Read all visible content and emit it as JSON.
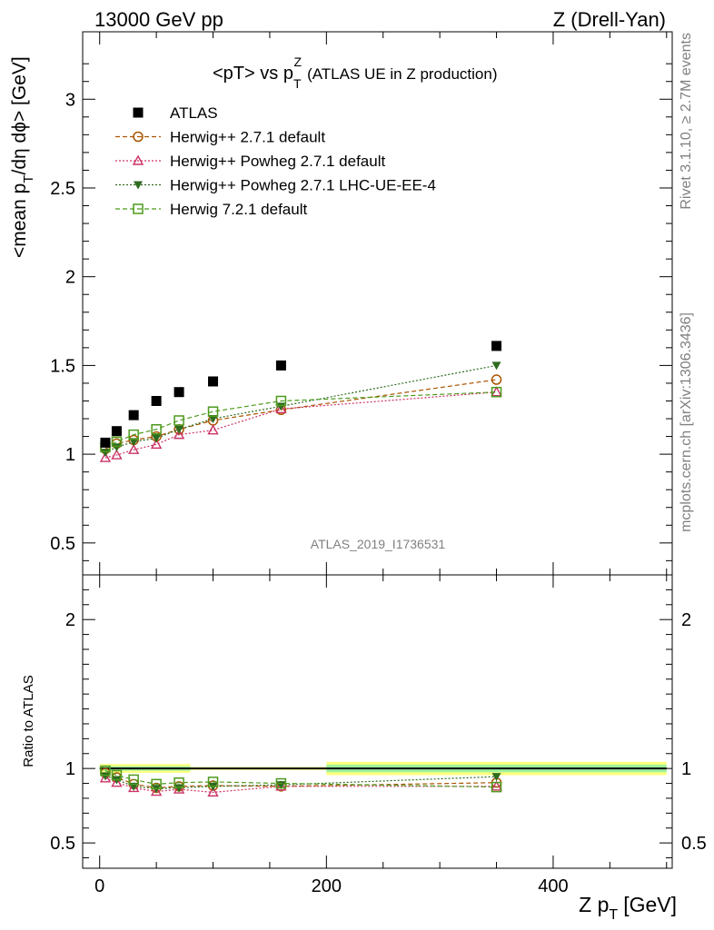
{
  "header": {
    "left": "13000 GeV pp",
    "right": "Z (Drell-Yan)"
  },
  "side_labels": {
    "rivet": "Rivet 3.1.10, ≥ 2.7M events",
    "mcplots": "mcplots.cern.ch [arXiv:1306.3436]"
  },
  "watermark": "ATLAS_2019_I1736531",
  "chart_data": [
    {
      "type": "scatter",
      "title": "<pT> vs p_T^Z (ATLAS UE in Z production)",
      "title_main": "<pT> vs p",
      "title_sub": "T",
      "title_sup": "Z",
      "title_rest": "(ATLAS UE in Z production)",
      "ylabel": "<mean p_T/dη dϕ> [GeV]",
      "ylabel_parts": [
        "<mean p",
        "T",
        "/dη dϕ> [GeV]"
      ],
      "xlim": [
        -15,
        505
      ],
      "ylim": [
        0.32,
        3.38
      ],
      "yticks": [
        0.5,
        1,
        1.5,
        2,
        2.5,
        3
      ],
      "ytick_labels": [
        "0.5",
        "1",
        "1.5",
        "2",
        "2.5",
        "3"
      ],
      "legend_position": "top-left",
      "series": [
        {
          "name": "ATLAS",
          "color": "#000000",
          "marker": "filled-square",
          "line": "none",
          "x": [
            5,
            15,
            30,
            50,
            70,
            100,
            160,
            350
          ],
          "y": [
            1.065,
            1.13,
            1.22,
            1.3,
            1.35,
            1.41,
            1.5,
            1.61
          ]
        },
        {
          "name": "Herwig++ 2.7.1 default",
          "color": "#aa5500",
          "marker": "open-circle",
          "line": "dashed",
          "x": [
            5,
            15,
            30,
            50,
            70,
            100,
            160,
            350
          ],
          "y": [
            1.03,
            1.06,
            1.08,
            1.1,
            1.14,
            1.19,
            1.25,
            1.42
          ]
        },
        {
          "name": "Herwig++ Powheg 2.7.1 default",
          "color": "#cc3366",
          "marker": "open-triangle-up",
          "line": "dotted",
          "x": [
            5,
            15,
            30,
            50,
            70,
            100,
            160,
            350
          ],
          "y": [
            0.98,
            0.995,
            1.025,
            1.055,
            1.11,
            1.135,
            1.255,
            1.35
          ]
        },
        {
          "name": "Herwig++ Powheg 2.7.1 LHC-UE-EE-4",
          "color": "#2e6b1f",
          "marker": "filled-triangle-down",
          "line": "dotted",
          "x": [
            5,
            15,
            30,
            50,
            70,
            100,
            160,
            350
          ],
          "y": [
            1.01,
            1.04,
            1.07,
            1.09,
            1.14,
            1.2,
            1.27,
            1.5
          ]
        },
        {
          "name": "Herwig 7.2.1 default",
          "color": "#4c9a1c",
          "marker": "open-square",
          "line": "dashed",
          "x": [
            5,
            15,
            30,
            50,
            70,
            100,
            160,
            350
          ],
          "y": [
            1.04,
            1.07,
            1.11,
            1.14,
            1.19,
            1.24,
            1.3,
            1.35
          ]
        }
      ]
    },
    {
      "type": "scatter",
      "ylabel": "Ratio to ATLAS",
      "xlabel": "Z p_T [GeV]",
      "xlabel_main": "Z p",
      "xlabel_sub": "T",
      "xlabel_rest": "[GeV]",
      "xlim": [
        -15,
        505
      ],
      "ylim": [
        0.33,
        2.3
      ],
      "yticks": [
        0.5,
        1,
        2
      ],
      "ytick_labels": [
        "0.5",
        "1",
        "2"
      ],
      "xticks": [
        0,
        200,
        400
      ],
      "xtick_labels": [
        "0",
        "200",
        "400"
      ],
      "reference_line": 1,
      "uncertainty_bands": [
        {
          "x": [
            0,
            80
          ],
          "inner": [
            0.985,
            1.015
          ],
          "outer": [
            0.97,
            1.03
          ]
        },
        {
          "x": [
            80,
            200
          ],
          "inner": [
            0.995,
            1.005
          ],
          "outer": [
            0.99,
            1.01
          ]
        },
        {
          "x": [
            200,
            500
          ],
          "inner": [
            0.975,
            1.025
          ],
          "outer": [
            0.955,
            1.045
          ]
        }
      ],
      "band_colors": {
        "inner": "#9cf29c",
        "outer": "#ffff80"
      },
      "series": [
        {
          "name": "Herwig++ 2.7.1 default",
          "x": [
            5,
            15,
            30,
            50,
            70,
            100,
            160,
            350
          ],
          "y": [
            0.97,
            0.94,
            0.895,
            0.87,
            0.88,
            0.885,
            0.88,
            0.905
          ]
        },
        {
          "name": "Herwig++ Powheg 2.7.1 default",
          "x": [
            5,
            15,
            30,
            50,
            70,
            100,
            160,
            350
          ],
          "y": [
            0.935,
            0.905,
            0.87,
            0.845,
            0.86,
            0.84,
            0.88,
            0.88
          ]
        },
        {
          "name": "Herwig++ Powheg 2.7.1 LHC-UE-EE-4",
          "x": [
            5,
            15,
            30,
            50,
            70,
            100,
            160,
            350
          ],
          "y": [
            0.95,
            0.925,
            0.88,
            0.865,
            0.87,
            0.88,
            0.89,
            0.945
          ]
        },
        {
          "name": "Herwig 7.2.1 default",
          "x": [
            5,
            15,
            30,
            50,
            70,
            100,
            160,
            350
          ],
          "y": [
            0.985,
            0.955,
            0.925,
            0.895,
            0.905,
            0.91,
            0.9,
            0.875
          ]
        }
      ]
    }
  ]
}
